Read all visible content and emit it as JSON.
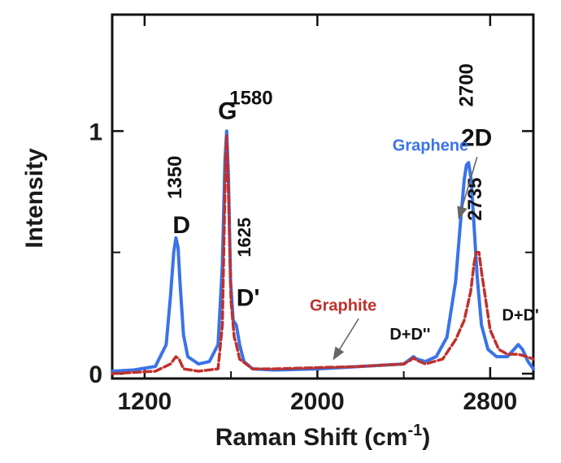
{
  "chart_data": {
    "type": "line",
    "xlabel": "Raman Shift (cm",
    "xlabel_sup": "-1",
    "xlabel_close": ")",
    "ylabel": "Intensity",
    "xlim": [
      1050,
      3000
    ],
    "ylim": [
      -0.02,
      1.48
    ],
    "x_ticks": [
      {
        "value": 1200,
        "label": "1200"
      },
      {
        "value": 2000,
        "label": "2000"
      },
      {
        "value": 2800,
        "label": "2800"
      }
    ],
    "y_ticks": [
      {
        "value": 0,
        "label": "0"
      },
      {
        "value": 1,
        "label": "1"
      }
    ],
    "grid": false,
    "series": [
      {
        "name": "Graphene",
        "color": "#3a73e8",
        "style": "solid",
        "points": [
          [
            1050,
            0.01
          ],
          [
            1150,
            0.015
          ],
          [
            1250,
            0.03
          ],
          [
            1300,
            0.12
          ],
          [
            1320,
            0.32
          ],
          [
            1335,
            0.5
          ],
          [
            1345,
            0.56
          ],
          [
            1355,
            0.52
          ],
          [
            1365,
            0.36
          ],
          [
            1380,
            0.16
          ],
          [
            1400,
            0.07
          ],
          [
            1450,
            0.04
          ],
          [
            1500,
            0.05
          ],
          [
            1540,
            0.12
          ],
          [
            1560,
            0.45
          ],
          [
            1572,
            0.88
          ],
          [
            1580,
            1.0
          ],
          [
            1588,
            0.82
          ],
          [
            1598,
            0.38
          ],
          [
            1610,
            0.22
          ],
          [
            1625,
            0.2
          ],
          [
            1640,
            0.12
          ],
          [
            1660,
            0.05
          ],
          [
            1700,
            0.02
          ],
          [
            1800,
            0.015
          ],
          [
            2000,
            0.02
          ],
          [
            2200,
            0.03
          ],
          [
            2400,
            0.04
          ],
          [
            2430,
            0.06
          ],
          [
            2445,
            0.07
          ],
          [
            2460,
            0.06
          ],
          [
            2500,
            0.05
          ],
          [
            2550,
            0.07
          ],
          [
            2600,
            0.15
          ],
          [
            2640,
            0.38
          ],
          [
            2665,
            0.65
          ],
          [
            2680,
            0.8
          ],
          [
            2690,
            0.86
          ],
          [
            2700,
            0.87
          ],
          [
            2712,
            0.8
          ],
          [
            2725,
            0.62
          ],
          [
            2740,
            0.4
          ],
          [
            2760,
            0.2
          ],
          [
            2790,
            0.1
          ],
          [
            2830,
            0.07
          ],
          [
            2880,
            0.07
          ],
          [
            2910,
            0.1
          ],
          [
            2930,
            0.12
          ],
          [
            2950,
            0.1
          ],
          [
            2975,
            0.05
          ],
          [
            3000,
            0.02
          ]
        ]
      },
      {
        "name": "Graphite",
        "color": "#c0302b",
        "style": "dashed",
        "points": [
          [
            1050,
            0.0
          ],
          [
            1150,
            0.005
          ],
          [
            1250,
            0.01
          ],
          [
            1320,
            0.04
          ],
          [
            1345,
            0.07
          ],
          [
            1360,
            0.06
          ],
          [
            1380,
            0.02
          ],
          [
            1450,
            0.01
          ],
          [
            1540,
            0.02
          ],
          [
            1560,
            0.2
          ],
          [
            1572,
            0.75
          ],
          [
            1580,
            0.98
          ],
          [
            1590,
            0.7
          ],
          [
            1600,
            0.3
          ],
          [
            1615,
            0.15
          ],
          [
            1625,
            0.12
          ],
          [
            1640,
            0.06
          ],
          [
            1700,
            0.02
          ],
          [
            1800,
            0.02
          ],
          [
            2000,
            0.025
          ],
          [
            2200,
            0.03
          ],
          [
            2400,
            0.04
          ],
          [
            2430,
            0.055
          ],
          [
            2445,
            0.065
          ],
          [
            2460,
            0.055
          ],
          [
            2500,
            0.04
          ],
          [
            2580,
            0.06
          ],
          [
            2640,
            0.14
          ],
          [
            2680,
            0.22
          ],
          [
            2710,
            0.34
          ],
          [
            2725,
            0.45
          ],
          [
            2735,
            0.5
          ],
          [
            2748,
            0.5
          ],
          [
            2760,
            0.42
          ],
          [
            2780,
            0.3
          ],
          [
            2800,
            0.18
          ],
          [
            2840,
            0.1
          ],
          [
            2880,
            0.08
          ],
          [
            2930,
            0.08
          ],
          [
            2970,
            0.07
          ],
          [
            3000,
            0.06
          ]
        ]
      }
    ],
    "annotations": [
      {
        "id": "d",
        "text": "D",
        "x": 1330,
        "y": 0.58,
        "size": 30,
        "rotate": false
      },
      {
        "id": "d-pos",
        "text": "1350",
        "x": 1370,
        "y": 0.72,
        "size": 24,
        "rotate": true
      },
      {
        "id": "g",
        "text": "G",
        "x": 1540,
        "y": 1.05,
        "size": 30,
        "rotate": false
      },
      {
        "id": "g-pos",
        "text": "1580",
        "x": 1593,
        "y": 1.11,
        "size": 24,
        "rotate": false
      },
      {
        "id": "dprime",
        "text": "D'",
        "x": 1625,
        "y": 0.28,
        "size": 30,
        "rotate": false
      },
      {
        "id": "dprime-pos",
        "text": "1625",
        "x": 1690,
        "y": 0.48,
        "size": 22,
        "rotate": true
      },
      {
        "id": "twod",
        "text": "2D",
        "x": 2665,
        "y": 0.94,
        "size": 30,
        "rotate": false
      },
      {
        "id": "dd2",
        "text": "D+D''",
        "x": 2335,
        "y": 0.14,
        "size": 20,
        "rotate": false
      },
      {
        "id": "ddp",
        "text": "D+D'",
        "x": 2855,
        "y": 0.22,
        "size": 20,
        "rotate": false
      }
    ],
    "peak_positions_colored": [
      {
        "id": "pos-2700",
        "text": "2700",
        "x": 2720,
        "y": 1.1,
        "color": "#3a73e8"
      },
      {
        "id": "pos-2735",
        "text": "2735",
        "x": 2760,
        "y": 0.63,
        "color": "#c0302b"
      }
    ],
    "series_labels": [
      {
        "id": "graphene-label",
        "text": "Graphene",
        "x": 2348,
        "y": 0.92,
        "color": "#3a73e8",
        "arrow_to": [
          2655,
          0.64
        ]
      },
      {
        "id": "graphite-label",
        "text": "Graphite",
        "x": 1965,
        "y": 0.26,
        "color": "#c0302b",
        "arrow_to": [
          2075,
          0.06
        ]
      }
    ]
  }
}
